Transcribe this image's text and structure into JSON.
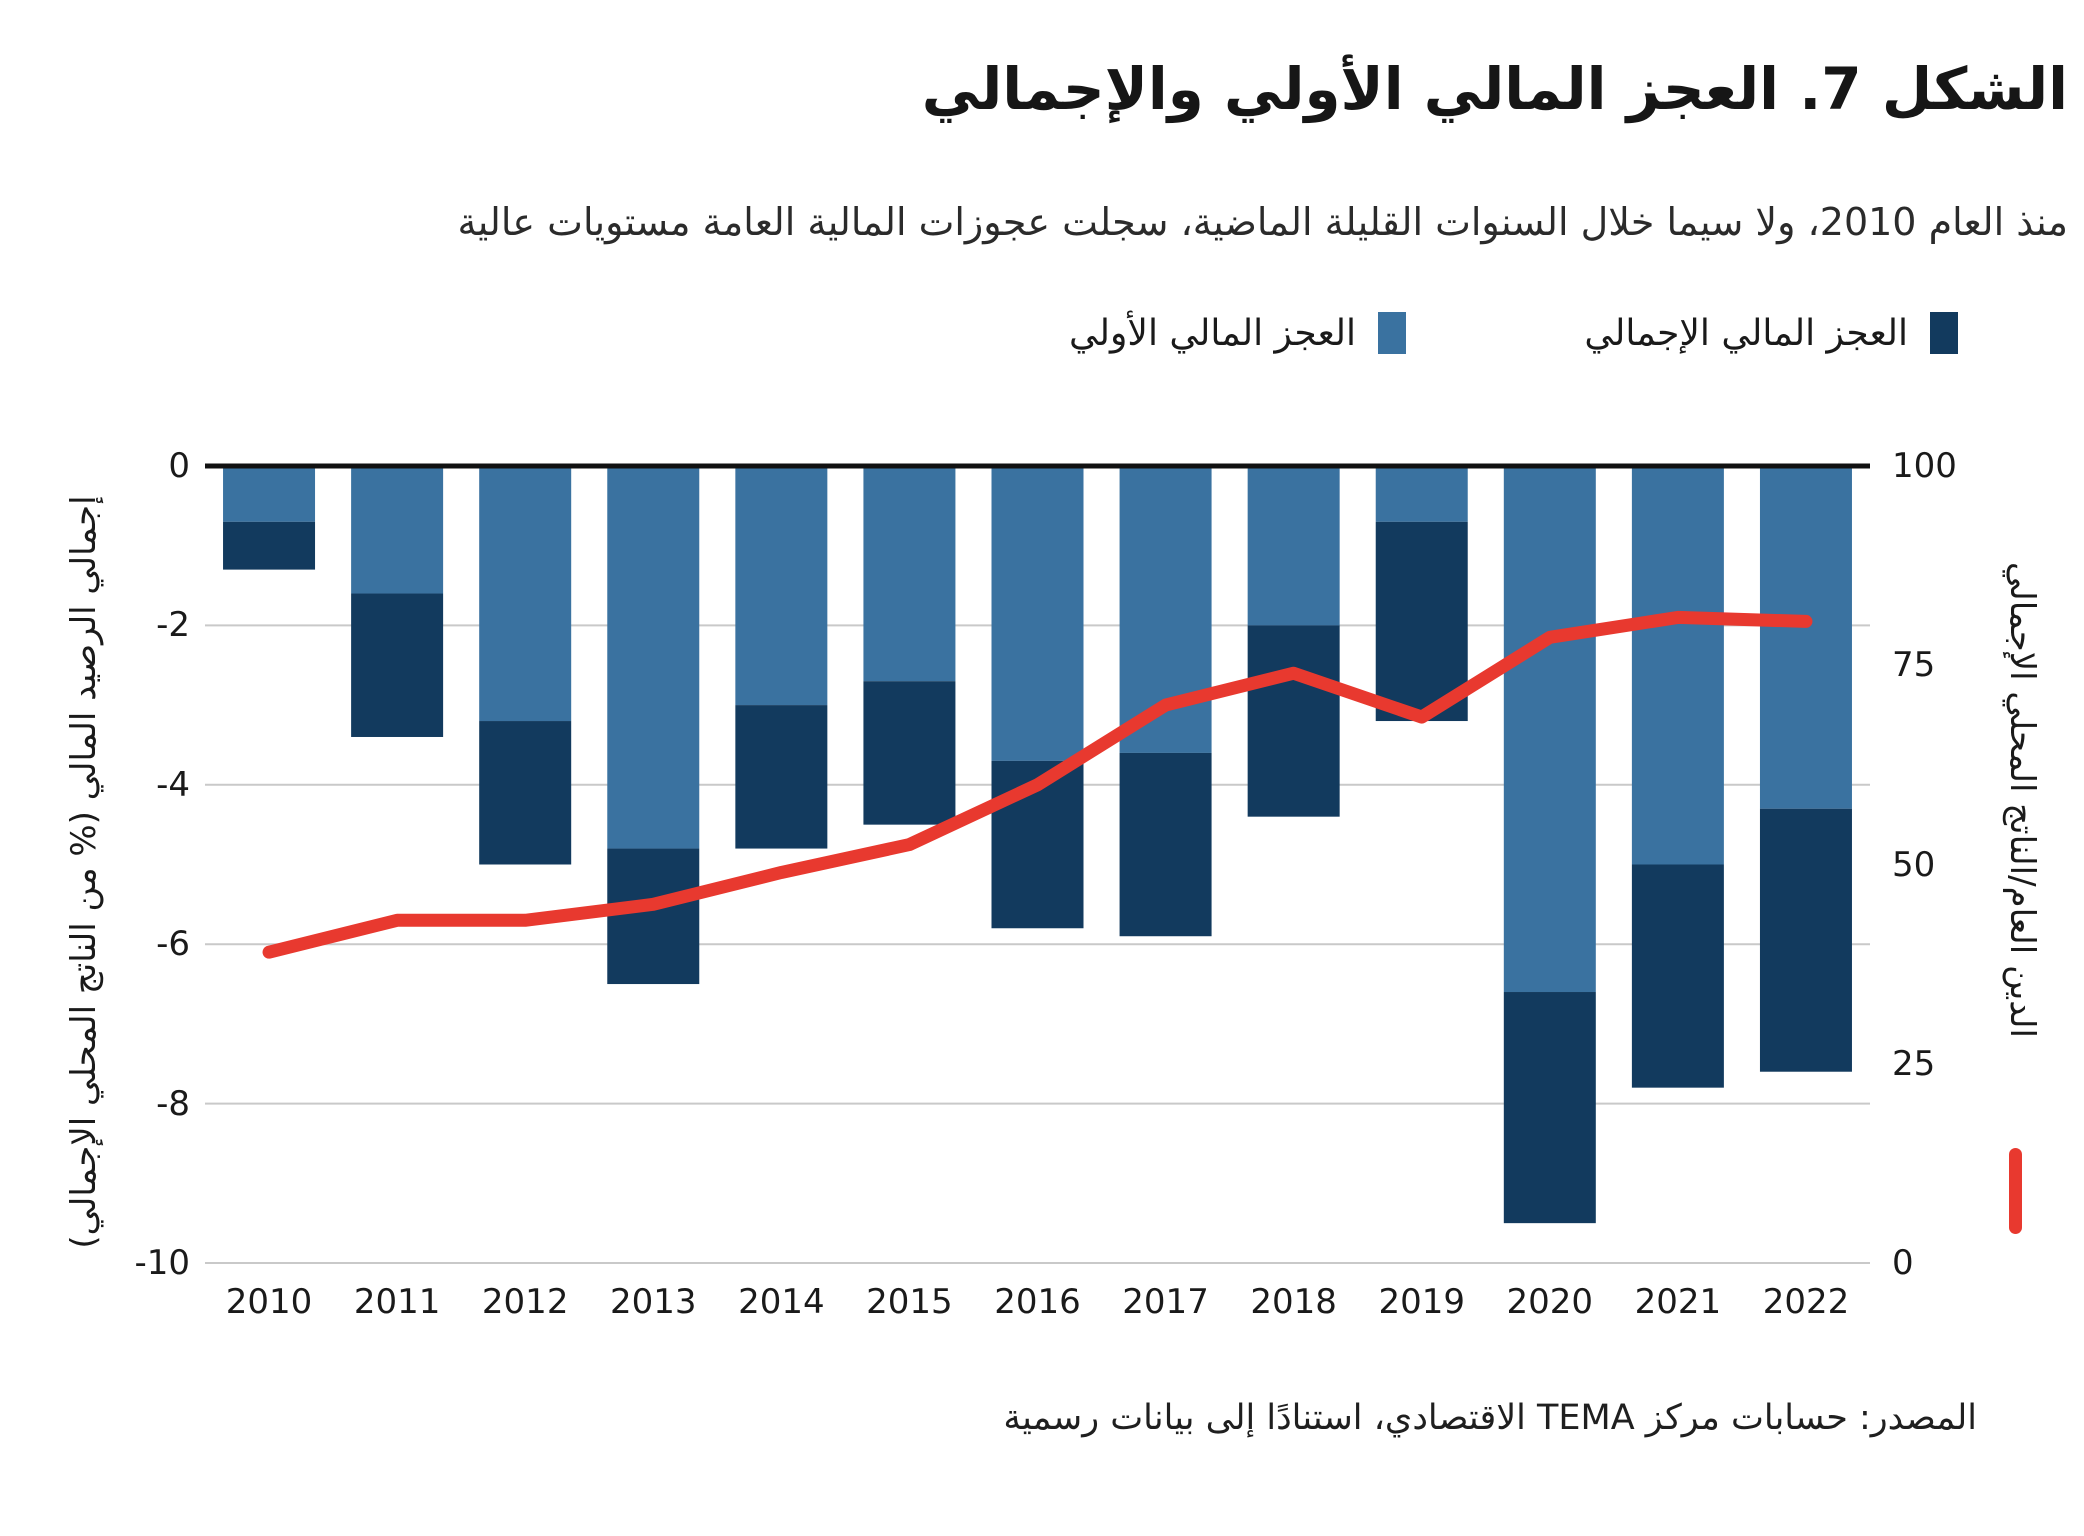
{
  "figure": {
    "title": "الشكل 7. العجز المالي الأولي والإجمالي",
    "subtitle": "منذ العام 2010، ولا سيما خلال السنوات القليلة الماضية، سجلت عجوزات المالية العامة مستويات عالية",
    "source": "المصدر: حسابات مركز TEMA الاقتصادي، استنادًا إلى بيانات رسمية"
  },
  "legend": {
    "overall": "العجز المالي الإجمالي",
    "primary": "العجز المالي الأولي"
  },
  "colors": {
    "overall_bar": "#123A5E",
    "primary_bar": "#3A72A0",
    "debt_line": "#E8392F",
    "grid": "#C9C9C9",
    "axis_line": "#111111",
    "text": "#1A1A1A"
  },
  "chart_data": {
    "type": "bar+line combo",
    "categories": [
      "2010",
      "2011",
      "2012",
      "2013",
      "2014",
      "2015",
      "2016",
      "2017",
      "2018",
      "2019",
      "2020",
      "2021",
      "2022"
    ],
    "series": [
      {
        "name": "العجز المالي الإجمالي",
        "type": "bar",
        "axis": "left",
        "color_key": "overall_bar",
        "values": [
          -1.3,
          -3.4,
          -5.0,
          -6.5,
          -4.8,
          -4.5,
          -5.8,
          -5.9,
          -4.4,
          -3.2,
          -9.5,
          -7.8,
          -7.6
        ]
      },
      {
        "name": "العجز المالي الأولي",
        "type": "bar",
        "axis": "left",
        "color_key": "primary_bar",
        "values": [
          -0.7,
          -1.6,
          -3.2,
          -4.8,
          -3.0,
          -2.7,
          -3.7,
          -3.6,
          -2.0,
          -0.7,
          -6.6,
          -5.0,
          -4.3
        ]
      },
      {
        "name": "الدين العام/الناتج المحلي الإجمالي",
        "type": "line",
        "axis": "right",
        "color_key": "debt_line",
        "values": [
          39,
          43,
          43,
          45,
          49,
          52.5,
          60,
          70,
          74,
          68.5,
          78.5,
          81,
          80.5
        ]
      }
    ],
    "left_axis": {
      "label": "إجمالي الرصيد المالي (% من الناتج المحلي الإجمالي)",
      "ticks": [
        0,
        -2,
        -4,
        -6,
        -8,
        -10
      ],
      "range": [
        0,
        -10
      ]
    },
    "right_axis": {
      "label": "الدين العام/الناتج المحلي الإجمالي",
      "ticks": [
        100,
        75,
        50,
        25,
        0
      ],
      "range": [
        100,
        0
      ]
    },
    "grid": "horizontal",
    "legend_position": "top"
  }
}
